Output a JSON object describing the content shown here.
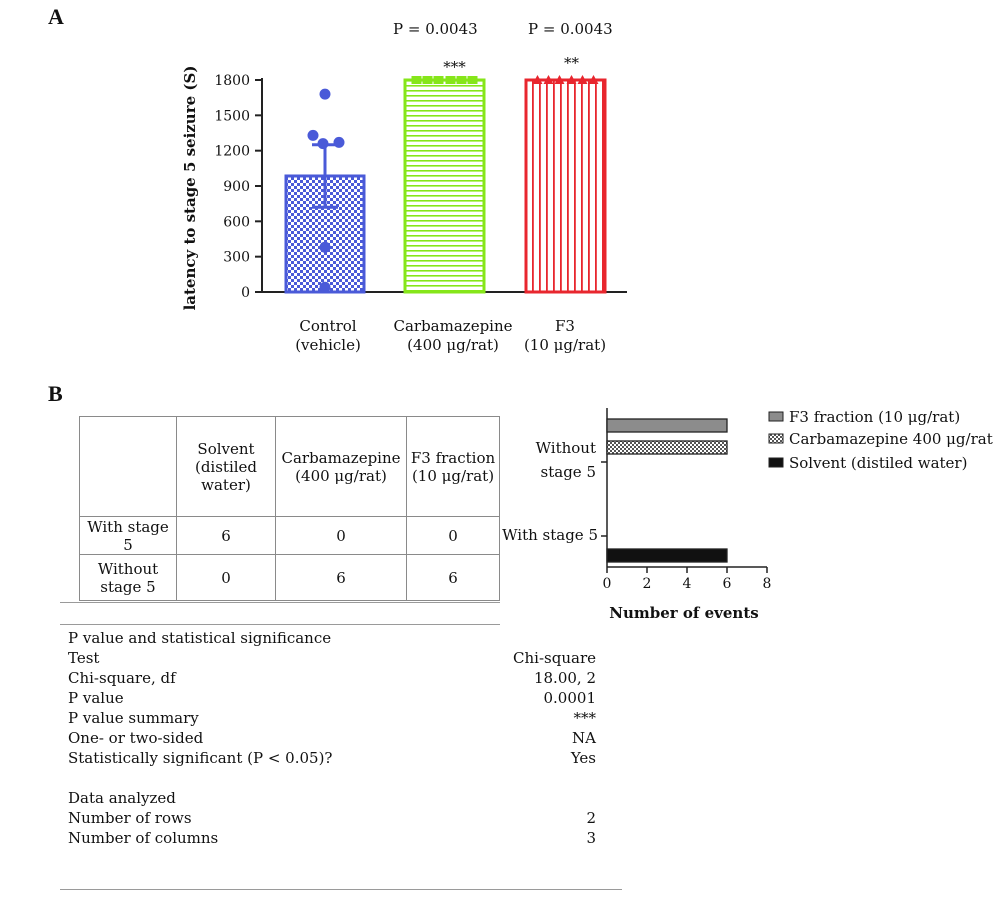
{
  "panel_a": {
    "label": "A",
    "p_values": [
      "P = 0.0043",
      "P = 0.0043"
    ],
    "sig_marks": [
      "***",
      "**"
    ],
    "group_labels": [
      {
        "line1": "Control",
        "line2": "(vehicle)"
      },
      {
        "line1": "Carbamazepine",
        "line2": "(400 μg/rat)"
      },
      {
        "line1": "F3",
        "line2": "(10 μg/rat)"
      }
    ]
  },
  "panel_b": {
    "label": "B",
    "table": {
      "headers": [
        "",
        "Solvent (distiled water)",
        "Carbamazepine (400 μg/rat)",
        "F3 fraction (10 μg/rat)"
      ],
      "rows": [
        {
          "label": "With stage 5",
          "values": [
            "6",
            "0",
            "0"
          ]
        },
        {
          "label": "Without stage 5",
          "values": [
            "0",
            "6",
            "6"
          ]
        }
      ]
    },
    "stats": {
      "title": "P value and statistical significance",
      "rows": [
        {
          "k": "Test",
          "v": "Chi-square"
        },
        {
          "k": "Chi-square, df",
          "v": "18.00, 2"
        },
        {
          "k": "P value",
          "v": "0.0001"
        },
        {
          "k": "P value summary",
          "v": "***"
        },
        {
          "k": "One- or two-sided",
          "v": "NA"
        },
        {
          "k": "Statistically significant (P < 0.05)?",
          "v": "Yes"
        }
      ],
      "data_title": "Data analyzed",
      "data_rows": [
        {
          "k": "Number of rows",
          "v": "2"
        },
        {
          "k": "Number of columns",
          "v": "3"
        }
      ]
    }
  },
  "colors": {
    "control": "#4a5ad8",
    "carbamazepine": "#86e61a",
    "f3": "#e8262e",
    "gray_bar": "#8c8c8c",
    "black_bar": "#111111",
    "axis": "#222222"
  },
  "chart_data": [
    {
      "type": "bar",
      "ylabel": "latency to stage 5 seizure (S)",
      "categories": [
        "Control (vehicle)",
        "Carbamazepine (400 μg/rat)",
        "F3 (10 μg/rat)"
      ],
      "values": [
        985,
        1800,
        1800
      ],
      "error_sd": [
        265,
        0,
        0
      ],
      "points": [
        [
          1680,
          1330,
          1270,
          1260,
          380,
          40
        ],
        [
          1800,
          1800,
          1800,
          1800,
          1800,
          1800
        ],
        [
          1800,
          1800,
          1800,
          1800,
          1800,
          1800
        ]
      ],
      "patterns": [
        "checker",
        "horizontal-lines",
        "vertical-lines"
      ],
      "yticks": [
        0,
        300,
        600,
        900,
        1200,
        1500,
        1800
      ],
      "ylim": [
        0,
        1800
      ]
    },
    {
      "type": "bar",
      "orientation": "horizontal",
      "xlabel": "Number of events",
      "categories": [
        "Without stage 5",
        "With stage 5"
      ],
      "series": [
        {
          "name": "F3 fraction (10 μg/rat)",
          "values": [
            6,
            0
          ],
          "pattern": "gray"
        },
        {
          "name": "Carbamazepine 400 μg/rat",
          "values": [
            6,
            0
          ],
          "pattern": "checker"
        },
        {
          "name": "Solvent (distiled water)",
          "values": [
            0,
            6
          ],
          "pattern": "black"
        }
      ],
      "xticks": [
        0,
        2,
        4,
        6,
        8
      ],
      "xlim": [
        0,
        8
      ],
      "legend": "right"
    }
  ]
}
